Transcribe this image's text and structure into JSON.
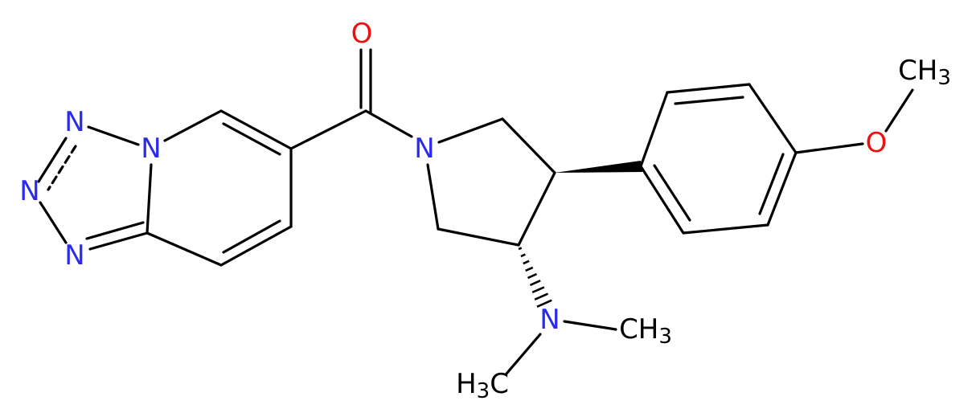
{
  "atoms": [
    {
      "element": "O"
    },
    {
      "element": "N"
    },
    {
      "element": "N"
    },
    {
      "element": "N"
    },
    {
      "element": "N"
    },
    {
      "element": "N"
    },
    {
      "element": "N"
    },
    {
      "element": "O"
    },
    {
      "text": "CH",
      "sub": "3"
    },
    {
      "text": "CH",
      "sub": "3"
    },
    {
      "pre": "H",
      "sub": "3",
      "post": "C"
    }
  ]
}
